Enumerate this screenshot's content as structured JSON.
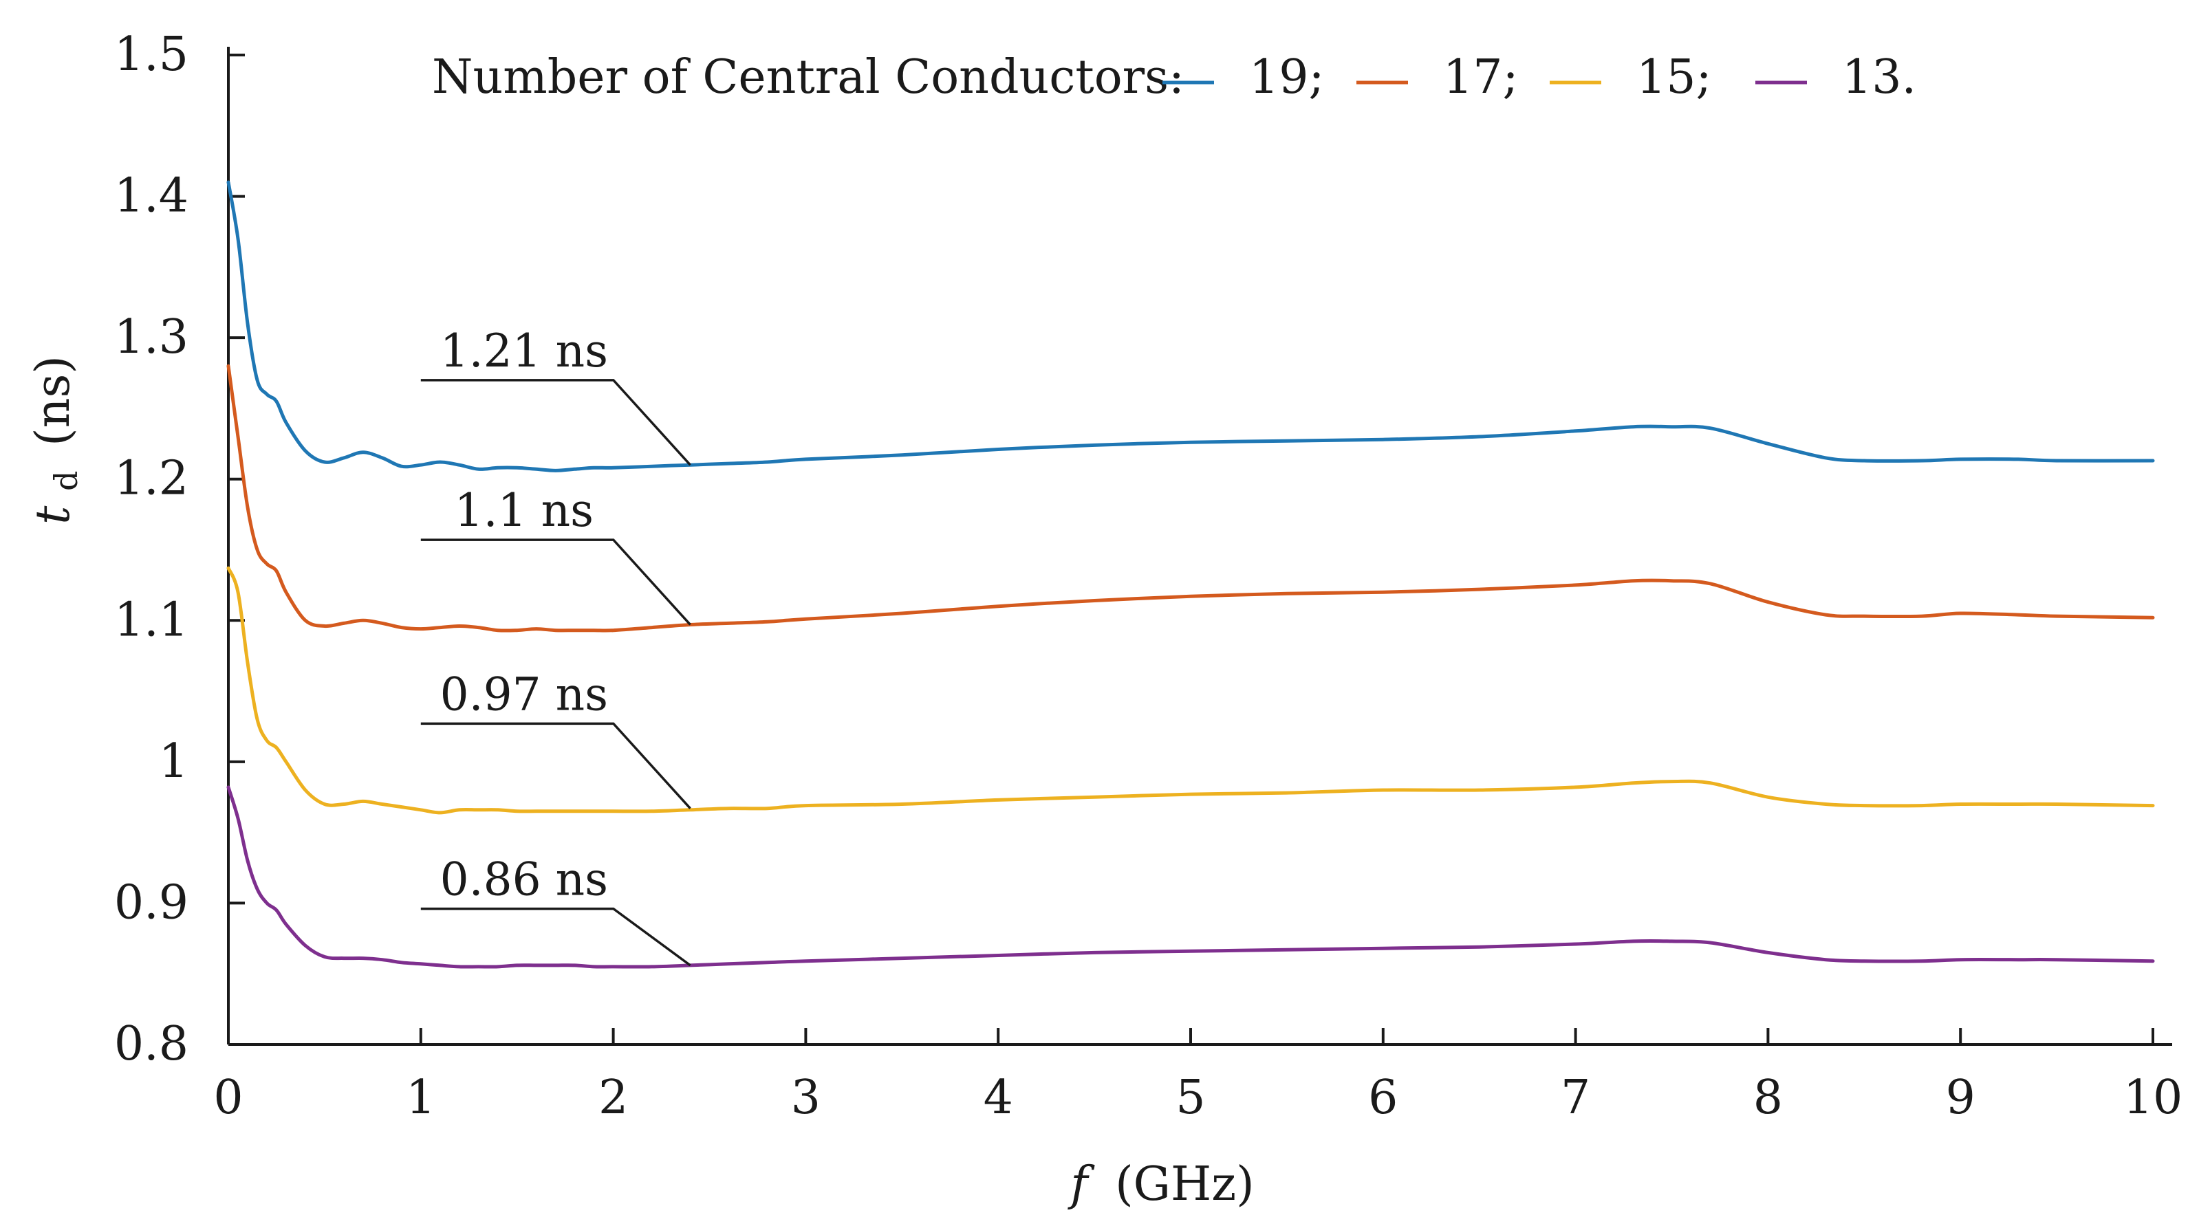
{
  "chart_data": {
    "type": "line",
    "title": "",
    "xlabel": "f (GHz)",
    "xlabel_var": "f",
    "xlabel_unit": "(GHz)",
    "ylabel": "td (ns)",
    "ylabel_var": "t",
    "ylabel_sub": "d",
    "ylabel_unit": "(ns)",
    "xlim": [
      0,
      10
    ],
    "ylim": [
      0.8,
      1.5
    ],
    "xticks": [
      0,
      1,
      2,
      3,
      4,
      5,
      6,
      7,
      8,
      9,
      10
    ],
    "xtick_labels": [
      "0",
      "1",
      "2",
      "3",
      "4",
      "5",
      "6",
      "7",
      "8",
      "9",
      "10"
    ],
    "yticks": [
      0.8,
      0.9,
      1.0,
      1.1,
      1.2,
      1.3,
      1.4,
      1.5
    ],
    "ytick_labels": [
      "0.8",
      "0.9",
      "1",
      "1.1",
      "1.2",
      "1.3",
      "1.4",
      "1.5"
    ],
    "grid": false,
    "legend": {
      "title": "Number of Central Conductors:",
      "placement": "top",
      "entries": [
        "19;",
        "17;",
        "15;",
        "13."
      ]
    },
    "x": [
      0,
      0.05,
      0.1,
      0.15,
      0.2,
      0.25,
      0.3,
      0.4,
      0.5,
      0.6,
      0.7,
      0.8,
      0.9,
      1.0,
      1.1,
      1.2,
      1.3,
      1.4,
      1.5,
      1.6,
      1.7,
      1.8,
      1.9,
      2.0,
      2.2,
      2.4,
      2.6,
      2.8,
      3.0,
      3.5,
      4.0,
      4.5,
      5.0,
      5.5,
      6.0,
      6.5,
      7.0,
      7.3,
      7.5,
      7.7,
      8.0,
      8.3,
      8.5,
      8.8,
      9.0,
      9.3,
      9.5,
      10.0
    ],
    "series": [
      {
        "name": "19",
        "color": "#1f77b4",
        "values": [
          1.41,
          1.37,
          1.31,
          1.27,
          1.26,
          1.255,
          1.24,
          1.22,
          1.212,
          1.215,
          1.219,
          1.215,
          1.209,
          1.21,
          1.212,
          1.21,
          1.207,
          1.208,
          1.208,
          1.207,
          1.206,
          1.207,
          1.208,
          1.208,
          1.209,
          1.21,
          1.211,
          1.212,
          1.214,
          1.217,
          1.221,
          1.224,
          1.226,
          1.227,
          1.228,
          1.23,
          1.234,
          1.237,
          1.237,
          1.236,
          1.225,
          1.215,
          1.213,
          1.213,
          1.214,
          1.214,
          1.213,
          1.213
        ]
      },
      {
        "name": "17",
        "color": "#d45a1e",
        "values": [
          1.28,
          1.23,
          1.18,
          1.15,
          1.14,
          1.135,
          1.12,
          1.1,
          1.096,
          1.098,
          1.1,
          1.098,
          1.095,
          1.094,
          1.095,
          1.096,
          1.095,
          1.093,
          1.093,
          1.094,
          1.093,
          1.093,
          1.093,
          1.093,
          1.095,
          1.097,
          1.098,
          1.099,
          1.101,
          1.105,
          1.11,
          1.114,
          1.117,
          1.119,
          1.12,
          1.122,
          1.125,
          1.128,
          1.128,
          1.126,
          1.113,
          1.104,
          1.103,
          1.103,
          1.105,
          1.104,
          1.103,
          1.102
        ]
      },
      {
        "name": "15",
        "color": "#edb120",
        "values": [
          1.137,
          1.12,
          1.07,
          1.03,
          1.015,
          1.01,
          1.0,
          0.98,
          0.97,
          0.97,
          0.972,
          0.97,
          0.968,
          0.966,
          0.964,
          0.966,
          0.966,
          0.966,
          0.965,
          0.965,
          0.965,
          0.965,
          0.965,
          0.965,
          0.965,
          0.966,
          0.967,
          0.967,
          0.969,
          0.97,
          0.973,
          0.975,
          0.977,
          0.978,
          0.98,
          0.98,
          0.982,
          0.985,
          0.986,
          0.985,
          0.975,
          0.97,
          0.969,
          0.969,
          0.97,
          0.97,
          0.97,
          0.969
        ]
      },
      {
        "name": "13",
        "color": "#7e2f8e",
        "values": [
          0.982,
          0.96,
          0.93,
          0.91,
          0.9,
          0.895,
          0.885,
          0.87,
          0.862,
          0.861,
          0.861,
          0.86,
          0.858,
          0.857,
          0.856,
          0.855,
          0.855,
          0.855,
          0.856,
          0.856,
          0.856,
          0.856,
          0.855,
          0.855,
          0.855,
          0.856,
          0.857,
          0.858,
          0.859,
          0.861,
          0.863,
          0.865,
          0.866,
          0.867,
          0.868,
          0.869,
          0.871,
          0.873,
          0.873,
          0.872,
          0.865,
          0.86,
          0.859,
          0.859,
          0.86,
          0.86,
          0.86,
          0.859
        ]
      }
    ],
    "annotations": [
      {
        "text": "1.21 ns",
        "x": 2.4,
        "y": 1.21,
        "label_x": 1.0,
        "label_y": 1.27
      },
      {
        "text": "1.1 ns",
        "x": 2.4,
        "y": 1.097,
        "label_x": 1.0,
        "label_y": 1.157
      },
      {
        "text": "0.97 ns",
        "x": 2.4,
        "y": 0.967,
        "label_x": 1.0,
        "label_y": 1.027
      },
      {
        "text": "0.86 ns",
        "x": 2.4,
        "y": 0.856,
        "label_x": 1.0,
        "label_y": 0.896
      }
    ]
  }
}
